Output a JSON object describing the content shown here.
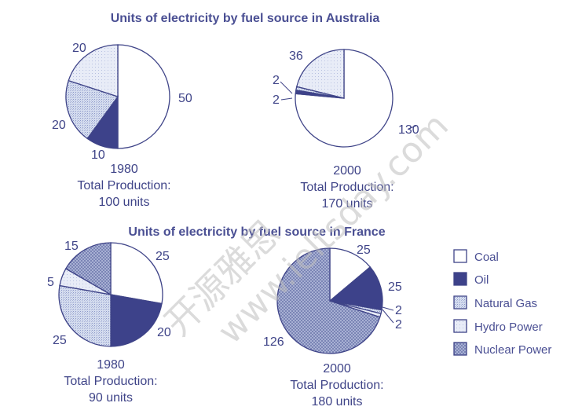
{
  "chart_data": [
    {
      "type": "pie",
      "title": "Units of electricity by fuel source in Australia",
      "year": "1980",
      "caption_line2": "Total Production:",
      "caption_line3": "100 units",
      "slices": [
        {
          "name": "Coal",
          "value": 50,
          "label": "50"
        },
        {
          "name": "Oil",
          "value": 10,
          "label": "10"
        },
        {
          "name": "Natural Gas",
          "value": 20,
          "label": "20"
        },
        {
          "name": "Hydro Power",
          "value": 20,
          "label": "20"
        }
      ]
    },
    {
      "type": "pie",
      "title": "",
      "year": "2000",
      "caption_line2": "Total Production:",
      "caption_line3": "170 units",
      "slices": [
        {
          "name": "Coal",
          "value": 130,
          "label": "130"
        },
        {
          "name": "Oil",
          "value": 2,
          "label": "2"
        },
        {
          "name": "Natural Gas",
          "value": 2,
          "label": "2"
        },
        {
          "name": "Hydro Power",
          "value": 36,
          "label": "36"
        }
      ]
    },
    {
      "type": "pie",
      "title": "Units of electricity by fuel source in France",
      "year": "1980",
      "caption_line2": "Total Production:",
      "caption_line3": "90 units",
      "slices": [
        {
          "name": "Coal",
          "value": 25,
          "label": "25"
        },
        {
          "name": "Oil",
          "value": 20,
          "label": "20"
        },
        {
          "name": "Natural Gas",
          "value": 25,
          "label": "25"
        },
        {
          "name": "Hydro Power",
          "value": 5,
          "label": "5"
        },
        {
          "name": "Nuclear Power",
          "value": 15,
          "label": "15"
        }
      ]
    },
    {
      "type": "pie",
      "title": "",
      "year": "2000",
      "caption_line2": "Total Production:",
      "caption_line3": "180 units",
      "slices": [
        {
          "name": "Coal",
          "value": 25,
          "label": "25"
        },
        {
          "name": "Oil",
          "value": 25,
          "label": "25"
        },
        {
          "name": "Natural Gas",
          "value": 2,
          "label": "2"
        },
        {
          "name": "Hydro Power",
          "value": 2,
          "label": "2"
        },
        {
          "name": "Nuclear Power",
          "value": 126,
          "label": "126"
        }
      ]
    }
  ],
  "legend": [
    {
      "name": "Coal",
      "label": "Coal"
    },
    {
      "name": "Oil",
      "label": "Oil"
    },
    {
      "name": "Natural Gas",
      "label": "Natural Gas"
    },
    {
      "name": "Hydro Power",
      "label": "Hydro Power"
    },
    {
      "name": "Nuclear Power",
      "label": "Nuclear Power"
    }
  ],
  "watermark": {
    "chinese": "开源雅思",
    "site": "www.ieltsday.com"
  }
}
